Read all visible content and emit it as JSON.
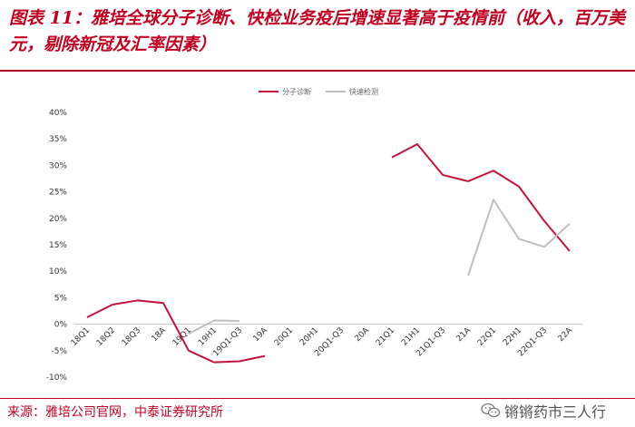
{
  "header": {
    "title": "图表 11：雅培全球分子诊断、快检业务疫后增速显著高于疫情前（收入，百万美元，剔除新冠及汇率因素）"
  },
  "footer": {
    "source": "来源：雅培公司官网，中泰证券研究所",
    "watermark": "锵锵药市三人行"
  },
  "colors": {
    "accent": "#c00020",
    "series_molecular": "#c0143c",
    "series_rapid": "#bfbfbf"
  },
  "chart_data": {
    "type": "line",
    "categories": [
      "18Q1",
      "18Q2",
      "18Q3",
      "18A",
      "19Q1",
      "19H1",
      "19Q1-Q3",
      "19A",
      "20Q1",
      "20H1",
      "20Q1-Q3",
      "20A",
      "21Q1",
      "21H1",
      "21Q1-Q3",
      "21A",
      "22Q1",
      "22H1",
      "22Q1-Q3",
      "22A"
    ],
    "series": [
      {
        "name": "分子诊断",
        "color": "#c0143c",
        "values": [
          1.3,
          3.7,
          4.5,
          4.0,
          -5.0,
          -7.2,
          -7.0,
          -6.0,
          null,
          null,
          null,
          null,
          31.5,
          34.0,
          28.2,
          27.0,
          29.0,
          26.0,
          19.5,
          13.8
        ]
      },
      {
        "name": "快速检测",
        "color": "#bfbfbf",
        "values": [
          null,
          null,
          null,
          null,
          -1.8,
          0.7,
          0.6,
          null,
          null,
          null,
          null,
          null,
          null,
          null,
          null,
          9.2,
          23.5,
          16.1,
          14.6,
          19.0
        ]
      }
    ],
    "y_ticks": [
      "40%",
      "35%",
      "30%",
      "25%",
      "20%",
      "15%",
      "10%",
      "5%",
      "0%",
      "-5%",
      "-10%"
    ],
    "ylim": [
      -10,
      40
    ],
    "y_unit": "%",
    "legend_position": "top-center",
    "grid": false
  }
}
